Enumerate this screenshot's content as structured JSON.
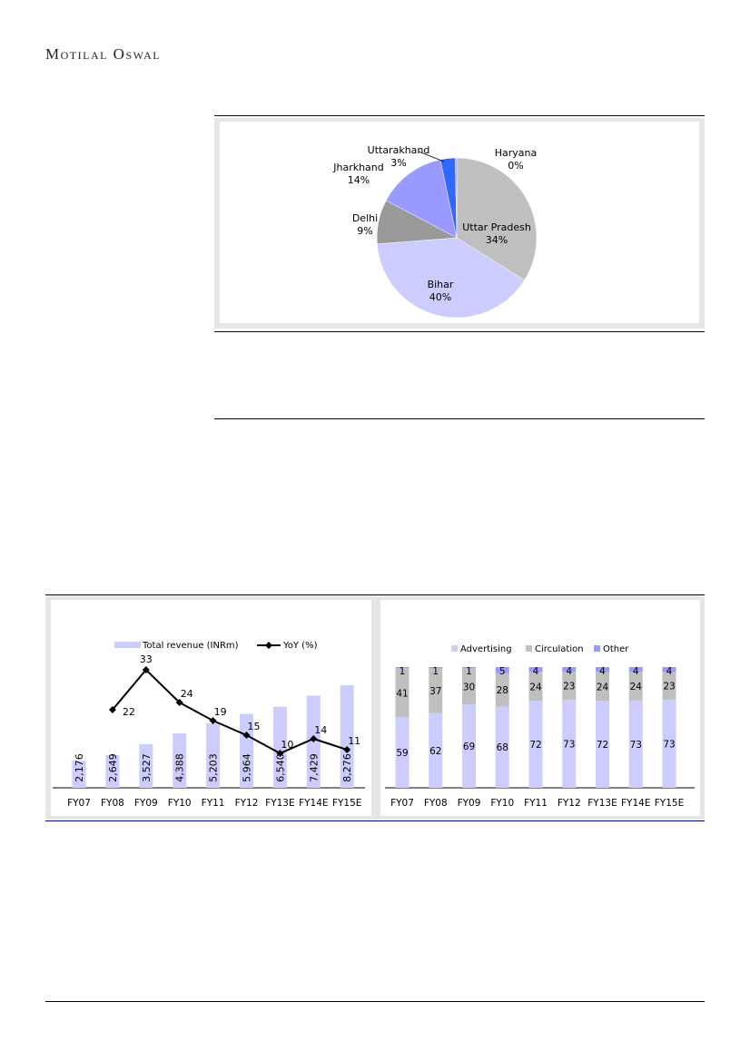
{
  "header": {
    "logo_text": "Motilal Oswal"
  },
  "colors": {
    "rule_blue": "#000080",
    "advertising": "#ccccff",
    "circulation": "#bfbfbf",
    "other": "#9999ff",
    "line": "#000000"
  },
  "chart_data": [
    {
      "type": "pie",
      "title": "",
      "slices": [
        {
          "label": "Uttar Pradesh",
          "value": 34,
          "pct_label": "34%",
          "color": "#bfbfbf"
        },
        {
          "label": "Bihar",
          "value": 40,
          "pct_label": "40%",
          "color": "#ccccff"
        },
        {
          "label": "Delhi",
          "value": 9,
          "pct_label": "9%",
          "color": "#999999"
        },
        {
          "label": "Jharkhand",
          "value": 14,
          "pct_label": "14%",
          "color": "#9999ff"
        },
        {
          "label": "Uttarakhand",
          "value": 3,
          "pct_label": "3%",
          "color": "#3366ff"
        },
        {
          "label": "Haryana",
          "value": 0.3,
          "pct_label": "0%",
          "color": "#9999ff"
        }
      ]
    },
    {
      "type": "bar+line",
      "categories": [
        "FY07",
        "FY08",
        "FY09",
        "FY10",
        "FY11",
        "FY12",
        "FY13E",
        "FY14E",
        "FY15E"
      ],
      "series": [
        {
          "name": "Total revenue (INRm)",
          "type": "bar",
          "values": [
            2176,
            2649,
            3527,
            4388,
            5203,
            5964,
            6540,
            7429,
            8276
          ],
          "labels": [
            "2,176",
            "2,649",
            "3,527",
            "4,388",
            "5,203",
            "5,964",
            "6,540",
            "7,429",
            "8,276"
          ]
        },
        {
          "name": "YoY (%)",
          "type": "line",
          "values": [
            null,
            22,
            33,
            24,
            19,
            15,
            10,
            14,
            11
          ]
        }
      ],
      "legend": "top"
    },
    {
      "type": "stacked-bar",
      "categories": [
        "FY07",
        "FY08",
        "FY09",
        "FY10",
        "FY11",
        "FY12",
        "FY13E",
        "FY14E",
        "FY15E"
      ],
      "series": [
        {
          "name": "Advertising",
          "values": [
            59,
            62,
            69,
            68,
            72,
            73,
            72,
            73,
            73
          ]
        },
        {
          "name": "Circulation",
          "values": [
            41,
            37,
            30,
            28,
            24,
            23,
            24,
            24,
            23
          ]
        },
        {
          "name": "Other",
          "values": [
            1,
            1,
            1,
            5,
            4,
            4,
            4,
            4,
            4
          ]
        }
      ],
      "ylim": [
        0,
        100
      ],
      "legend": "top"
    }
  ]
}
